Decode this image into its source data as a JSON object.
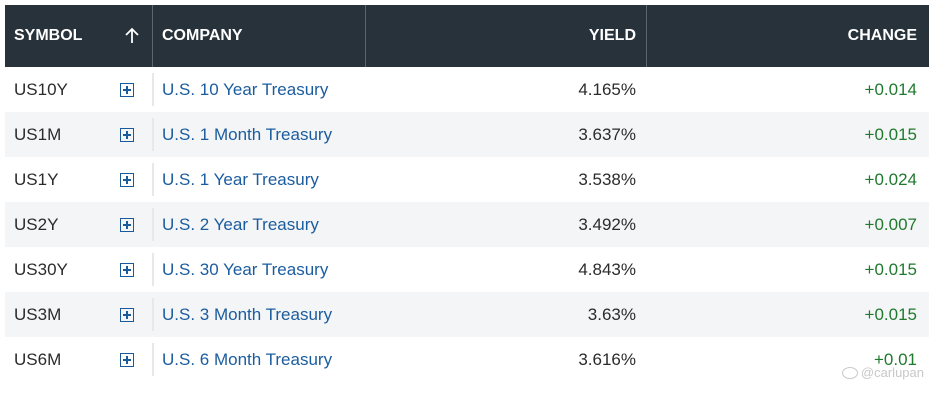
{
  "columns": {
    "symbol": "SYMBOL",
    "company": "COMPANY",
    "yield": "YIELD",
    "change": "CHANGE"
  },
  "sort_icon": "arrow-up-icon",
  "add_icon": "add-to-watchlist-icon",
  "colors": {
    "header_bg": "#27323b",
    "link": "#1b5c9e",
    "positive": "#1f7a2e"
  },
  "rows": [
    {
      "symbol": "US10Y",
      "company": "U.S. 10 Year Treasury",
      "yield": "4.165%",
      "change": "+0.014"
    },
    {
      "symbol": "US1M",
      "company": "U.S. 1 Month Treasury",
      "yield": "3.637%",
      "change": "+0.015"
    },
    {
      "symbol": "US1Y",
      "company": "U.S. 1 Year Treasury",
      "yield": "3.538%",
      "change": "+0.024"
    },
    {
      "symbol": "US2Y",
      "company": "U.S. 2 Year Treasury",
      "yield": "3.492%",
      "change": "+0.007"
    },
    {
      "symbol": "US30Y",
      "company": "U.S. 30 Year Treasury",
      "yield": "4.843%",
      "change": "+0.015"
    },
    {
      "symbol": "US3M",
      "company": "U.S. 3 Month Treasury",
      "yield": "3.63%",
      "change": "+0.015"
    },
    {
      "symbol": "US6M",
      "company": "U.S. 6 Month Treasury",
      "yield": "3.616%",
      "change": "+0.01"
    }
  ],
  "watermark": "@carlupan"
}
